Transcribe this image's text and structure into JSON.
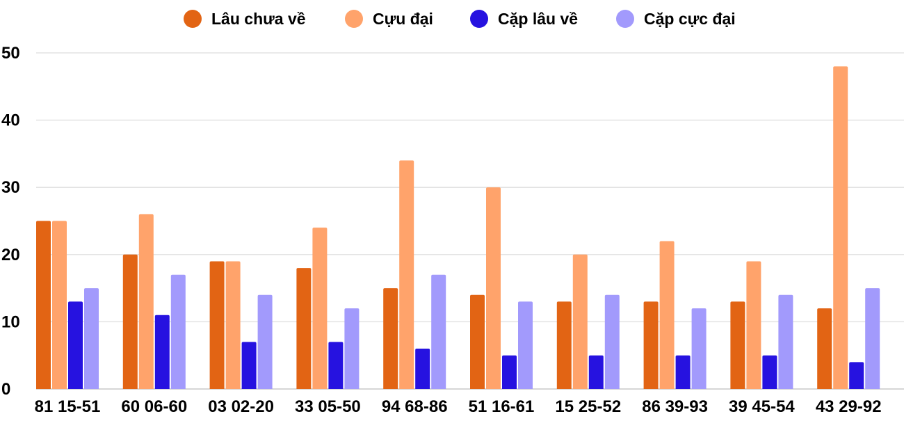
{
  "chart_data": {
    "type": "bar",
    "title": "",
    "xlabel": "",
    "ylabel": "",
    "ylim": [
      0,
      50
    ],
    "yticks": [
      0,
      10,
      20,
      30,
      40,
      50
    ],
    "grid": true,
    "legend_position": "top",
    "categories": [
      "81 15-51",
      "60 06-60",
      "03 02-20",
      "33 05-50",
      "94 68-86",
      "51 16-61",
      "15 25-52",
      "86 39-93",
      "39 45-54",
      "43 29-92"
    ],
    "series": [
      {
        "name": "Lâu chưa về",
        "color": "#e26414",
        "values": [
          25,
          20,
          19,
          18,
          15,
          14,
          13,
          13,
          13,
          12
        ]
      },
      {
        "name": "Cựu đại",
        "color": "#ffa36b",
        "values": [
          25,
          26,
          19,
          24,
          34,
          30,
          20,
          22,
          19,
          48
        ]
      },
      {
        "name": "Cặp lâu về",
        "color": "#2612e0",
        "values": [
          13,
          11,
          7,
          7,
          6,
          5,
          5,
          5,
          5,
          4
        ]
      },
      {
        "name": "Cặp cực đại",
        "color": "#a29afc",
        "values": [
          15,
          17,
          14,
          12,
          17,
          13,
          14,
          12,
          14,
          15
        ]
      }
    ]
  }
}
